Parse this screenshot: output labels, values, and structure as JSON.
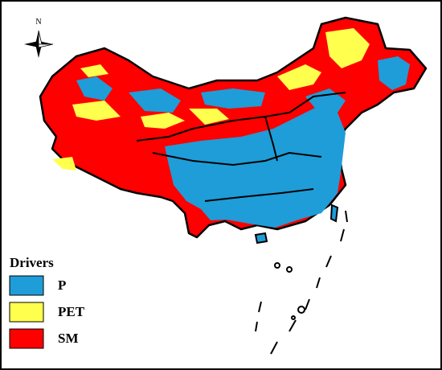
{
  "compass": {
    "label": "N"
  },
  "legend": {
    "title": "Drivers",
    "items": [
      {
        "label": "P",
        "color": "#1e9dd8"
      },
      {
        "label": "PET",
        "color": "#ffff4d"
      },
      {
        "label": "SM",
        "color": "#ff0000"
      }
    ]
  }
}
